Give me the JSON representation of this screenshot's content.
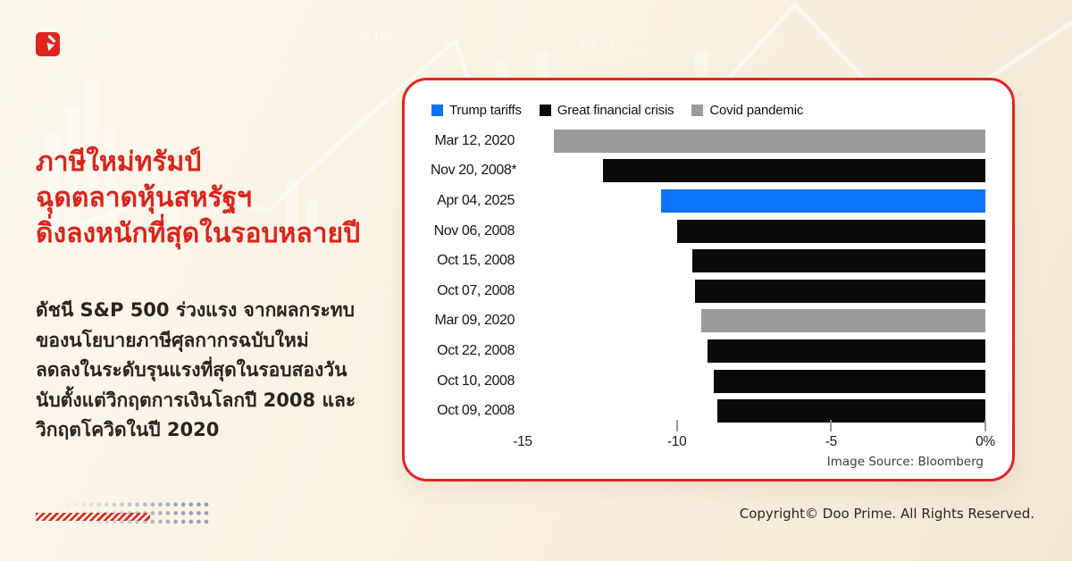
{
  "brand": {
    "accent_red": "#d9251c",
    "logo": "doo-prime-mark"
  },
  "headline": {
    "lines": [
      "ภาษีใหม่ทรัมป์",
      "ฉุดตลาดหุ้นสหรัฐฯ",
      "ดิ่งลงหนักที่สุดในรอบหลายปี"
    ]
  },
  "body": {
    "lines": [
      "ดัชนี S&P 500 ร่วงแรง จากผลกระทบ",
      "ของนโยบายภาษีศุลกากรฉบับใหม่",
      "ลดลงในระดับรุนแรงที่สุดในรอบสองวัน",
      "นับตั้งแต่วิกฤตการเงินโลกปี 2008 และ",
      "วิกฤตโควิดในปี 2020"
    ]
  },
  "chart_card": {
    "source": "Image Source: Bloomberg"
  },
  "chart_data": {
    "type": "bar",
    "orientation": "horizontal",
    "title": "",
    "categories": [
      "Mar 12, 2020",
      "Nov 20, 2008*",
      "Apr 04, 2025",
      "Nov 06, 2008",
      "Oct 15, 2008",
      "Oct 07, 2008",
      "Mar 09, 2020",
      "Oct 22, 2008",
      "Oct 10, 2008",
      "Oct 09, 2008"
    ],
    "values": [
      -14.0,
      -12.4,
      -10.5,
      -10.0,
      -9.5,
      -9.4,
      -9.2,
      -9.0,
      -8.8,
      -8.7
    ],
    "groups": [
      "covid",
      "gfc",
      "trump",
      "gfc",
      "gfc",
      "gfc",
      "covid",
      "gfc",
      "gfc",
      "gfc"
    ],
    "series_colors": {
      "trump": "#0b74fb",
      "gfc": "#0a0a0a",
      "covid": "#9b9b9b"
    },
    "legend": [
      {
        "series": "trump",
        "label": "Trump tariffs"
      },
      {
        "series": "gfc",
        "label": "Great financial crisis"
      },
      {
        "series": "covid",
        "label": "Covid pandemic"
      }
    ],
    "legend_position": "top",
    "grid": false,
    "xlabel": "",
    "ylabel": "",
    "xlim": [
      -15,
      0
    ],
    "x_ticks": [
      {
        "value": -15,
        "label": "-15",
        "tick": false
      },
      {
        "value": -10,
        "label": "-10",
        "tick": true
      },
      {
        "value": -5,
        "label": "-5",
        "tick": true
      },
      {
        "value": 0,
        "label": "0%",
        "tick": true
      }
    ]
  },
  "background_watermark": {
    "figures": [
      "76,180",
      "186,53"
    ]
  },
  "footer": {
    "copyright": "Copyright© Doo Prime. All Rights Reserved."
  }
}
